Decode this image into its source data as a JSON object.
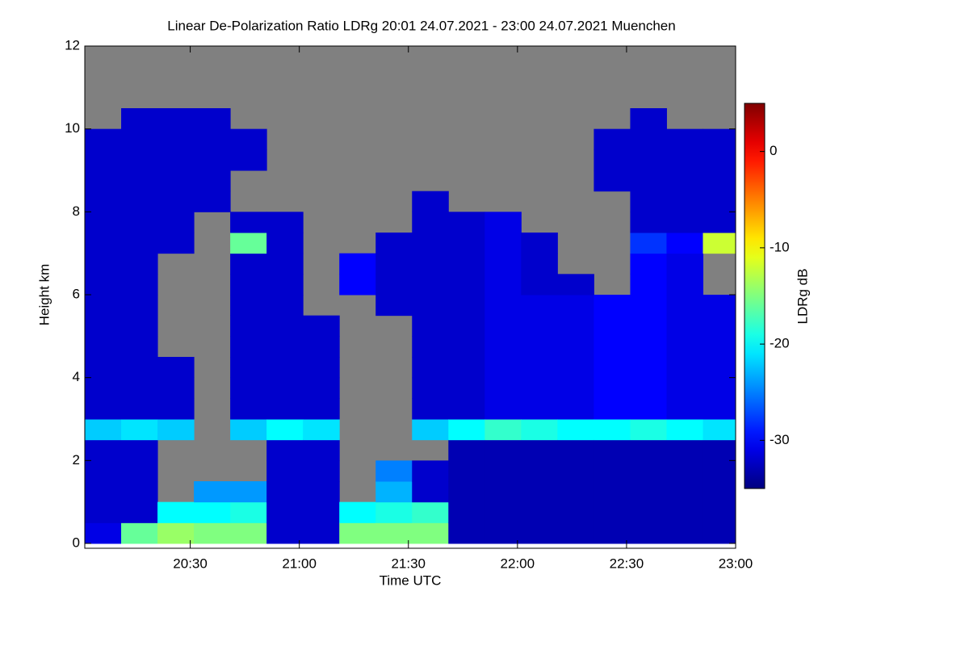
{
  "chart_data": {
    "type": "heatmap",
    "title": "Linear De-Polarization Ratio LDRg   20:01 24.07.2021 - 23:00 24.07.2021 Muenchen",
    "xlabel": "Time UTC",
    "ylabel": "Height km",
    "colorbar_label": "LDRg dB",
    "xlim": [
      "20:01",
      "23:00"
    ],
    "xticks": [
      "20:30",
      "21:00",
      "21:30",
      "22:00",
      "22:30",
      "23:00"
    ],
    "ylim": [
      0,
      12
    ],
    "yticks": [
      0,
      2,
      4,
      6,
      8,
      10,
      12
    ],
    "clim": [
      -35,
      5
    ],
    "cticks": [
      0,
      -10,
      -20,
      -30
    ],
    "colormap": "jet",
    "background": "#808080",
    "x": [
      "20:01",
      "20:11",
      "20:21",
      "20:31",
      "20:41",
      "20:51",
      "21:01",
      "21:11",
      "21:21",
      "21:31",
      "21:41",
      "21:51",
      "22:01",
      "22:11",
      "22:21",
      "22:31",
      "22:41",
      "22:51"
    ],
    "y": [
      0,
      0.5,
      1,
      1.5,
      2,
      2.5,
      3,
      3.5,
      4,
      4.5,
      5,
      5.5,
      6,
      6.5,
      7,
      7.5,
      8,
      8.5,
      9,
      9.5,
      10,
      10.5,
      11,
      11.5
    ],
    "z": [
      [
        -31,
        -32,
        -32,
        -32,
        -32,
        -22,
        -32,
        -32,
        -32,
        -32,
        -32,
        -32,
        -32,
        -32,
        -32,
        -32,
        -32,
        -32,
        -32,
        -32,
        null,
        null,
        null,
        null
      ],
      [
        -16,
        -32,
        -32,
        -32,
        -32,
        -21,
        -32,
        -32,
        -32,
        -32,
        -32,
        -32,
        -32,
        -32,
        -32,
        -32,
        -32,
        -32,
        -32,
        -32,
        -32,
        null,
        null,
        null
      ],
      [
        -14,
        -20,
        null,
        null,
        null,
        -22,
        -32,
        -32,
        -32,
        null,
        null,
        null,
        null,
        null,
        -32,
        -32,
        -32,
        -32,
        -32,
        -32,
        -32,
        null,
        null,
        null
      ],
      [
        -15,
        -20,
        -24,
        null,
        null,
        null,
        null,
        null,
        null,
        null,
        null,
        null,
        null,
        null,
        null,
        null,
        -32,
        -32,
        -32,
        -32,
        -32,
        null,
        null,
        null
      ],
      [
        -15,
        -19,
        -24,
        null,
        null,
        -22,
        -32,
        -32,
        -32,
        -32,
        -32,
        -32,
        -32,
        -32,
        -16,
        -32,
        null,
        null,
        -32,
        -32,
        null,
        null,
        null,
        null
      ],
      [
        -32,
        -32,
        -32,
        -32,
        -32,
        -20,
        -32,
        -32,
        -32,
        -32,
        -32,
        -32,
        -32,
        -32,
        -32,
        -32,
        null,
        null,
        null,
        null,
        null,
        null,
        null,
        null
      ],
      [
        -32,
        -32,
        -32,
        -32,
        -32,
        -21,
        -32,
        -32,
        -32,
        -32,
        -32,
        null,
        null,
        null,
        null,
        null,
        null,
        null,
        null,
        null,
        null,
        null,
        null,
        null
      ],
      [
        -15,
        -20,
        null,
        null,
        null,
        null,
        null,
        null,
        null,
        null,
        null,
        null,
        -30,
        -30,
        null,
        null,
        null,
        null,
        null,
        null,
        null,
        null,
        null,
        null
      ],
      [
        -15,
        -19,
        -23,
        -25,
        null,
        null,
        null,
        null,
        null,
        null,
        null,
        -32,
        -32,
        -32,
        -32,
        null,
        null,
        null,
        null,
        null,
        null,
        null,
        null,
        null
      ],
      [
        -15,
        -18,
        -32,
        -32,
        null,
        -22,
        -32,
        -32,
        -32,
        -32,
        -32,
        -32,
        -32,
        -32,
        -32,
        -32,
        -32,
        null,
        null,
        null,
        null,
        null,
        null,
        null
      ],
      [
        -33,
        -33,
        -33,
        -33,
        -33,
        -20,
        -32,
        -32,
        -32,
        -32,
        -32,
        -32,
        -32,
        -32,
        -32,
        -32,
        null,
        null,
        null,
        null,
        null,
        null,
        null,
        null
      ],
      [
        -33,
        -33,
        -33,
        -33,
        -33,
        -18,
        -31,
        -31,
        -31,
        -31,
        -31,
        -31,
        -31,
        -31,
        -31,
        -31,
        null,
        null,
        null,
        null,
        null,
        null,
        null,
        null
      ],
      [
        -33,
        -33,
        -33,
        -33,
        -33,
        -19,
        -31,
        -31,
        -31,
        -31,
        -31,
        -31,
        -32,
        -32,
        -32,
        null,
        null,
        null,
        null,
        null,
        null,
        null,
        null,
        null
      ],
      [
        -33,
        -33,
        -33,
        -33,
        -33,
        -20,
        -31,
        -31,
        -31,
        -31,
        -31,
        -31,
        -32,
        null,
        null,
        null,
        null,
        null,
        null,
        null,
        null,
        null,
        null,
        null
      ],
      [
        -33,
        -33,
        -33,
        -33,
        -33,
        -20,
        -30,
        -30,
        -30,
        -30,
        -30,
        -30,
        null,
        null,
        null,
        null,
        null,
        -32,
        -32,
        -32,
        null,
        null,
        null,
        null
      ],
      [
        -33,
        -33,
        -33,
        -33,
        -33,
        -19,
        -30,
        -30,
        -30,
        -30,
        -30,
        -30,
        -30,
        -30,
        -28,
        -32,
        -32,
        -32,
        -32,
        -32,
        -32,
        null,
        null,
        null
      ],
      [
        -33,
        -33,
        -33,
        -33,
        -33,
        -20,
        -31,
        -31,
        -31,
        -31,
        -31,
        -31,
        -31,
        -31,
        -30,
        -32,
        -32,
        -32,
        -32,
        -32,
        null,
        null,
        null,
        null
      ],
      [
        -33,
        -33,
        -33,
        -33,
        -33,
        -21,
        -31,
        -31,
        -31,
        -31,
        -31,
        -31,
        null,
        null,
        -12,
        -32,
        -32,
        -32,
        -32,
        -32,
        null,
        null,
        null,
        null
      ]
    ]
  }
}
